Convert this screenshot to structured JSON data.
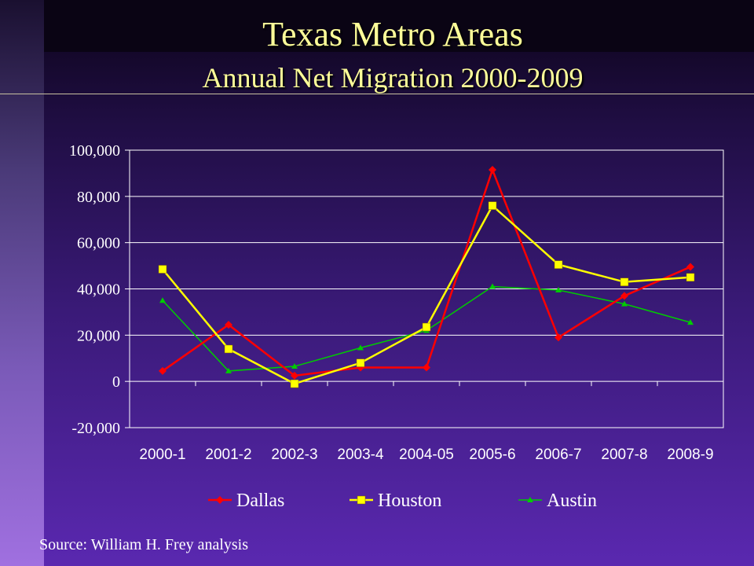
{
  "slide": {
    "title": "Texas Metro Areas",
    "subtitle": "Annual Net Migration 2000-2009",
    "source": "Source: William H. Frey analysis"
  },
  "chart_data": {
    "type": "line",
    "title": "",
    "xlabel": "",
    "ylabel": "",
    "categories": [
      "2000-1",
      "2001-2",
      "2002-3",
      "2003-4",
      "2004-05",
      "2005-6",
      "2006-7",
      "2007-8",
      "2008-9"
    ],
    "ylim": [
      -20000,
      100000
    ],
    "yticks": [
      -20000,
      0,
      20000,
      40000,
      60000,
      80000,
      100000
    ],
    "ytick_labels": [
      "-20,000",
      "0",
      "20,000",
      "40,000",
      "60,000",
      "80,000",
      "100,000"
    ],
    "grid": "horizontal",
    "legend_position": "bottom",
    "series": [
      {
        "name": "Dallas",
        "color": "#ff0000",
        "marker": "diamond",
        "values": [
          4500,
          24500,
          2500,
          6000,
          6000,
          91500,
          19000,
          37000,
          49500
        ]
      },
      {
        "name": "Houston",
        "color": "#ffff00",
        "marker": "square",
        "values": [
          48500,
          14000,
          -1000,
          8000,
          23500,
          76000,
          50500,
          43000,
          45000
        ]
      },
      {
        "name": "Austin",
        "color": "#00cc00",
        "marker": "triangle",
        "values": [
          35000,
          4500,
          6500,
          14500,
          22000,
          41000,
          39500,
          33500,
          25500
        ]
      }
    ]
  }
}
